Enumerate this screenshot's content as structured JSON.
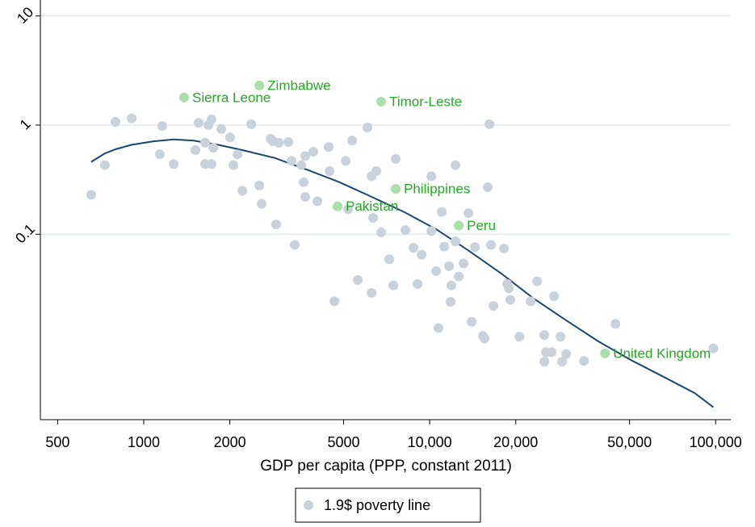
{
  "chart_data": {
    "type": "scatter",
    "x_label": "GDP per capita (PPP, constant 2011)",
    "log_x": true,
    "log_y": true,
    "xlim": [
      435,
      113000
    ],
    "ylim": [
      0.002,
      14
    ],
    "xticks": [
      500,
      1000,
      2000,
      5000,
      {
        "value": 10000,
        "label": "10,000"
      },
      {
        "value": 20000,
        "label": "20,000"
      },
      {
        "value": 50000,
        "label": "50,000"
      },
      {
        "value": 100000,
        "label": "100,000"
      }
    ],
    "yticks": [
      0.1,
      1,
      10
    ],
    "grid": true,
    "legend": "bottom",
    "series": [
      {
        "name": "1.9$ poverty line",
        "color": "#c9d1da",
        "x": [
          655,
          731,
          796,
          908,
          1138,
          1161,
          1273,
          1517,
          1556,
          1640,
          1683,
          1727,
          1750,
          1640,
          1727,
          1868,
          2005,
          2059,
          2128,
          2213,
          2377,
          2537,
          2584,
          2778,
          2831,
          2964,
          3204,
          3288,
          2905,
          3373,
          3556,
          3626,
          3672,
          3672,
          3919,
          4047,
          4435,
          4466,
          4645,
          5085,
          5188,
          5358,
          5610,
          6058,
          6266,
          6266,
          6343,
          6512,
          6769,
          7226,
          7464,
          7610,
          8227,
          8782,
          9073,
          9378,
          10140,
          10140,
          10540,
          10740,
          11020,
          11240,
          11690,
          11840,
          11910,
          12310,
          12310,
          12640,
          13140,
          13670,
          14030,
          14400,
          15360,
          15560,
          15970,
          16180,
          16390,
          16720,
          18200,
          18680,
          18910,
          19150,
          20590,
          22550,
          23770,
          25190,
          25520,
          25190,
          26710,
          27230,
          28690,
          29050,
          30010,
          34640,
          44670,
          98200
        ],
        "values": [
          0.23,
          0.43,
          1.07,
          1.15,
          0.54,
          0.98,
          0.44,
          0.59,
          1.05,
          0.69,
          1.0,
          1.13,
          0.62,
          0.44,
          0.44,
          0.92,
          0.77,
          0.43,
          0.54,
          0.25,
          1.02,
          0.28,
          0.19,
          0.75,
          0.71,
          0.69,
          0.7,
          0.47,
          0.123,
          0.08,
          0.43,
          0.3,
          0.22,
          0.52,
          0.57,
          0.2,
          0.63,
          0.38,
          0.0243,
          0.47,
          0.17,
          0.72,
          0.038,
          0.95,
          0.029,
          0.34,
          0.141,
          0.38,
          0.104,
          0.059,
          0.034,
          0.49,
          0.109,
          0.075,
          0.035,
          0.065,
          0.34,
          0.107,
          0.046,
          0.0138,
          0.16,
          0.077,
          0.051,
          0.024,
          0.034,
          0.43,
          0.086,
          0.041,
          0.054,
          0.156,
          0.0158,
          0.076,
          0.0117,
          0.0111,
          0.27,
          1.02,
          0.08,
          0.022,
          0.074,
          0.035,
          0.032,
          0.025,
          0.0115,
          0.0243,
          0.037,
          0.0119,
          0.0083,
          0.0068,
          0.0083,
          0.027,
          0.0115,
          0.0068,
          0.008,
          0.0069,
          0.0151,
          0.009
        ]
      }
    ],
    "highlights": {
      "color": "#a9dfa9",
      "label_color": "#22aa22",
      "labels": [
        "Zimbabwe",
        "Sierra Leone",
        "Timor-Leste",
        "Philippines",
        "Pakistan",
        "Peru",
        "United Kingdom"
      ],
      "x": [
        2537,
        1384,
        6769,
        7610,
        4764,
        12640,
        41040
      ],
      "values": [
        2.31,
        1.79,
        1.64,
        0.26,
        0.18,
        0.12,
        0.0081
      ]
    },
    "fit_line": {
      "color": "#1a476f",
      "x": [
        655,
        731,
        796,
        908,
        1081,
        1273,
        1496,
        1818,
        2213,
        2869,
        3724,
        4834,
        6266,
        8129,
        10540,
        13670,
        17740,
        23020,
        29870,
        38740,
        50250,
        65190,
        84560,
        98200
      ],
      "values": [
        0.46,
        0.55,
        0.6,
        0.66,
        0.71,
        0.74,
        0.72,
        0.66,
        0.59,
        0.5,
        0.39,
        0.3,
        0.22,
        0.16,
        0.111,
        0.071,
        0.044,
        0.026,
        0.0164,
        0.0105,
        0.0071,
        0.005,
        0.0035,
        0.0026
      ]
    }
  }
}
